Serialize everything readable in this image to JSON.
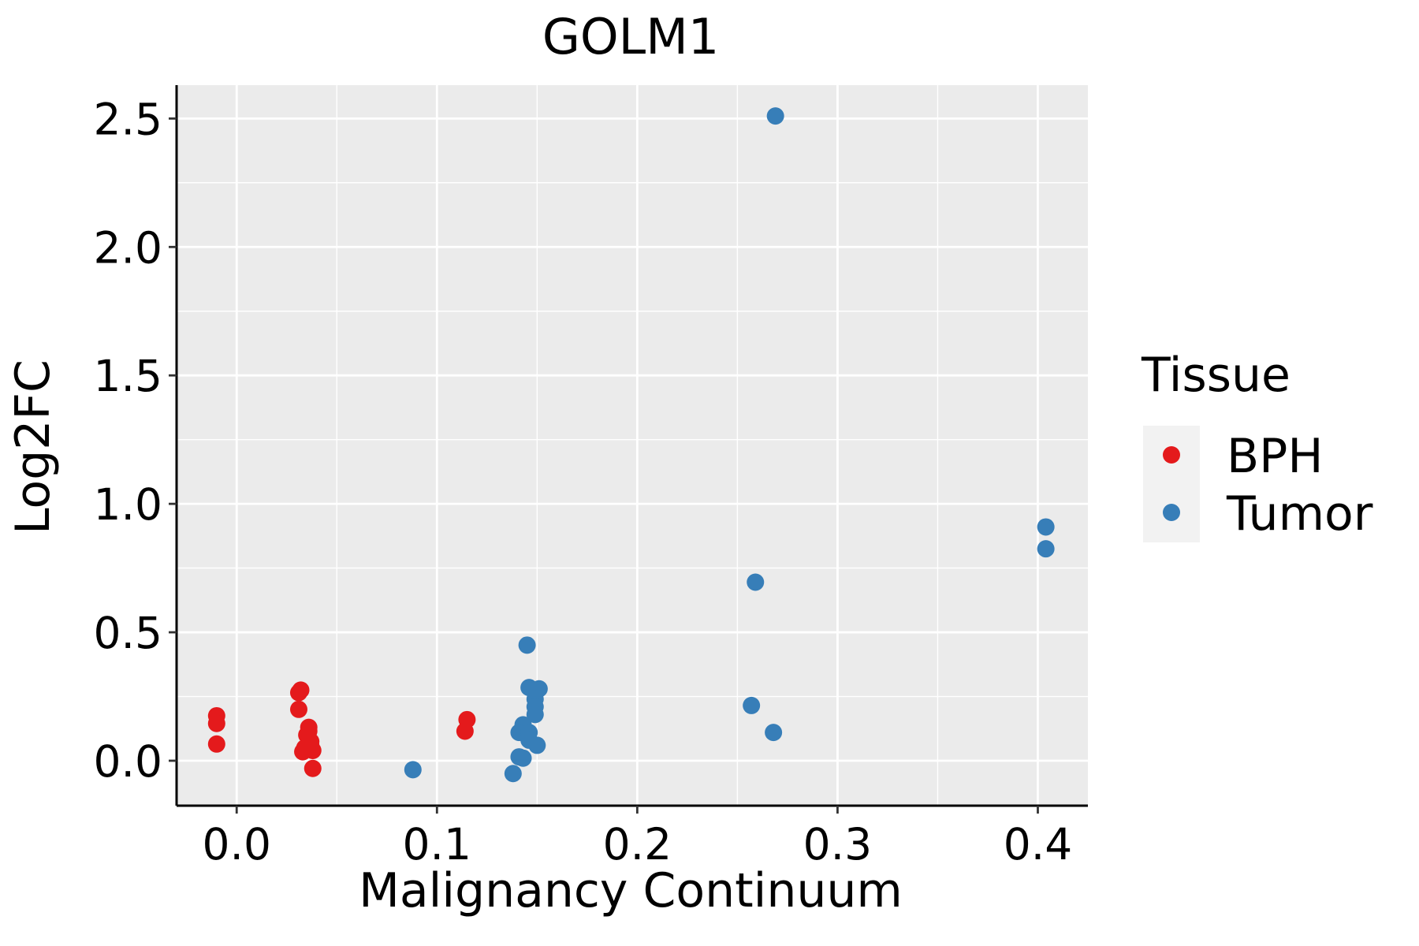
{
  "chart_data": {
    "type": "scatter",
    "title": "GOLM1",
    "xlabel": "Malignancy Continuum",
    "ylabel": "Log2FC",
    "xlim": [
      -0.03,
      0.425
    ],
    "ylim": [
      -0.175,
      2.63
    ],
    "x_ticks": [
      0.0,
      0.1,
      0.2,
      0.3,
      0.4
    ],
    "x_tick_labels": [
      "0.0",
      "0.1",
      "0.2",
      "0.3",
      "0.4"
    ],
    "y_ticks": [
      0.0,
      0.5,
      1.0,
      1.5,
      2.0,
      2.5
    ],
    "y_tick_labels": [
      "0.0",
      "0.5",
      "1.0",
      "1.5",
      "2.0",
      "2.5"
    ],
    "grid": true,
    "legend": {
      "title": "Tissue",
      "position": "right",
      "entries": [
        {
          "label": "BPH",
          "color": "#E41A1C"
        },
        {
          "label": "Tumor",
          "color": "#377EB8"
        }
      ]
    },
    "series": [
      {
        "name": "BPH",
        "color": "#E41A1C",
        "points": [
          {
            "x": -0.01,
            "y": 0.175
          },
          {
            "x": -0.01,
            "y": 0.145
          },
          {
            "x": -0.01,
            "y": 0.065
          },
          {
            "x": 0.031,
            "y": 0.265
          },
          {
            "x": 0.032,
            "y": 0.275
          },
          {
            "x": 0.031,
            "y": 0.2
          },
          {
            "x": 0.036,
            "y": 0.13
          },
          {
            "x": 0.036,
            "y": 0.115
          },
          {
            "x": 0.035,
            "y": 0.1
          },
          {
            "x": 0.037,
            "y": 0.075
          },
          {
            "x": 0.037,
            "y": 0.06
          },
          {
            "x": 0.034,
            "y": 0.05
          },
          {
            "x": 0.033,
            "y": 0.035
          },
          {
            "x": 0.038,
            "y": 0.04
          },
          {
            "x": 0.038,
            "y": -0.03
          },
          {
            "x": 0.115,
            "y": 0.16
          },
          {
            "x": 0.114,
            "y": 0.115
          }
        ]
      },
      {
        "name": "Tumor",
        "color": "#377EB8",
        "points": [
          {
            "x": 0.088,
            "y": -0.035
          },
          {
            "x": 0.145,
            "y": 0.45
          },
          {
            "x": 0.146,
            "y": 0.285
          },
          {
            "x": 0.151,
            "y": 0.28
          },
          {
            "x": 0.149,
            "y": 0.24
          },
          {
            "x": 0.149,
            "y": 0.21
          },
          {
            "x": 0.149,
            "y": 0.18
          },
          {
            "x": 0.143,
            "y": 0.14
          },
          {
            "x": 0.141,
            "y": 0.11
          },
          {
            "x": 0.146,
            "y": 0.11
          },
          {
            "x": 0.146,
            "y": 0.08
          },
          {
            "x": 0.15,
            "y": 0.06
          },
          {
            "x": 0.141,
            "y": 0.015
          },
          {
            "x": 0.143,
            "y": 0.01
          },
          {
            "x": 0.138,
            "y": -0.05
          },
          {
            "x": 0.269,
            "y": 2.51
          },
          {
            "x": 0.259,
            "y": 0.695
          },
          {
            "x": 0.257,
            "y": 0.215
          },
          {
            "x": 0.268,
            "y": 0.11
          },
          {
            "x": 0.404,
            "y": 0.91
          },
          {
            "x": 0.404,
            "y": 0.825
          }
        ]
      }
    ]
  }
}
